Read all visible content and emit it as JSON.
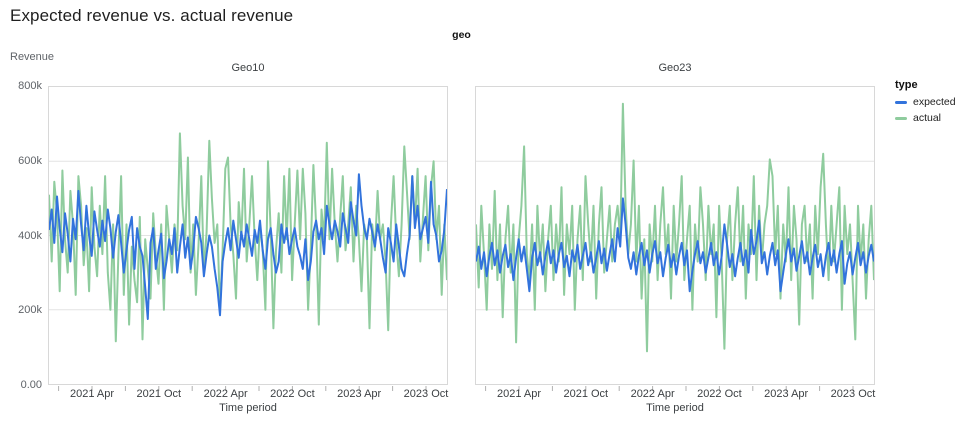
{
  "title": "Expected revenue vs. actual revenue",
  "facet_label": "geo",
  "y_axis": {
    "label": "Revenue",
    "ticks": [
      "800k",
      "600k",
      "400k",
      "200k",
      "0.00"
    ]
  },
  "x_axis": {
    "label": "Time period",
    "ticks": [
      "2021 Apr",
      "2021 Oct",
      "2022 Apr",
      "2022 Oct",
      "2023 Apr",
      "2023 Oct"
    ]
  },
  "legend": {
    "title": "type",
    "items": [
      {
        "label": "expected",
        "color": "#3273dc"
      },
      {
        "label": "actual",
        "color": "#8fcc9e"
      }
    ]
  },
  "colors": {
    "grid": "#e3e3e3",
    "border": "#d8d8d8",
    "tick": "#b0b0b0"
  },
  "chart_data": {
    "type": "line",
    "title": "Expected revenue vs. actual revenue",
    "facet_field": "geo",
    "xlabel": "Time period",
    "ylabel": "Revenue",
    "x_interval": "weekly, Jan 2021 - Dec 2023",
    "x_tick_labels": [
      "2021 Apr",
      "2021 Oct",
      "2022 Apr",
      "2022 Oct",
      "2023 Apr",
      "2023 Oct"
    ],
    "y_unit": "thousands",
    "ylim": [
      0,
      800
    ],
    "y_grid": [
      200,
      400,
      600
    ],
    "legend_position": "right",
    "facets": [
      {
        "name": "Geo10",
        "series": [
          {
            "name": "actual",
            "color": "#8fcc9e",
            "values": [
              510,
              330,
              545,
              460,
              250,
              575,
              390,
              300,
              520,
              430,
              240,
              560,
              480,
              320,
              420,
              250,
              530,
              370,
              290,
              480,
              350,
              560,
              300,
              200,
              430,
              115,
              350,
              560,
              240,
              430,
              160,
              370,
              280,
              220,
              450,
              120,
              390,
              310,
              230,
              460,
              350,
              270,
              430,
              200,
              480,
              390,
              300,
              430,
              360,
              675,
              480,
              390,
              610,
              300,
              430,
              240,
              380,
              560,
              300,
              410,
              655,
              500,
              380,
              430,
              200,
              360,
              580,
              610,
              430,
              350,
              230,
              490,
              390,
              580,
              330,
              430,
              560,
              390,
              280,
              430,
              360,
              200,
              600,
              410,
              150,
              360,
              460,
              300,
              560,
              390,
              580,
              280,
              430,
              575,
              390,
              580,
              460,
              200,
              370,
              590,
              430,
              160,
              470,
              390,
              650,
              390,
              580,
              430,
              330,
              450,
              560,
              360,
              430,
              530,
              330,
              480,
              390,
              250,
              430,
              390,
              150,
              430,
              360,
              520,
              390,
              430,
              330,
              145,
              430,
              560,
              390,
              290,
              430,
              640,
              520,
              390,
              560,
              430,
              580,
              330,
              450,
              560,
              360,
              530,
              600,
              390,
              480,
              240,
              430,
              280
            ]
          },
          {
            "name": "expected",
            "color": "#3273dc",
            "values": [
              415,
              470,
              380,
              505,
              420,
              355,
              460,
              405,
              330,
              445,
              390,
              520,
              430,
              360,
              480,
              400,
              345,
              465,
              415,
              370,
              440,
              385,
              470,
              420,
              340,
              410,
              455,
              380,
              300,
              360,
              415,
              450,
              310,
              420,
              370,
              345,
              260,
              175,
              380,
              420,
              310,
              360,
              405,
              285,
              330,
              390,
              350,
              420,
              300,
              370,
              430,
              340,
              395,
              310,
              360,
              450,
              420,
              380,
              290,
              350,
              400,
              370,
              310,
              260,
              185,
              330,
              380,
              420,
              360,
              440,
              390,
              340,
              410,
              370,
              430,
              390,
              345,
              415,
              380,
              440,
              360,
              310,
              390,
              420,
              350,
              300,
              330,
              430,
              380,
              420,
              350,
              390,
              420,
              370,
              345,
              310,
              390,
              280,
              330,
              410,
              440,
              390,
              420,
              350,
              480,
              430,
              390,
              440,
              410,
              370,
              460,
              420,
              380,
              490,
              440,
              400,
              565,
              480,
              420,
              390,
              445,
              410,
              370,
              430,
              390,
              340,
              300,
              420,
              380,
              330,
              430,
              370,
              310,
              290,
              350,
              400,
              560,
              420,
              480,
              390,
              420,
              450,
              380,
              545,
              430,
              400,
              330,
              360,
              415,
              525
            ]
          }
        ]
      },
      {
        "name": "Geo23",
        "series": [
          {
            "name": "actual",
            "color": "#8fcc9e",
            "values": [
              430,
              260,
              480,
              350,
              200,
              430,
              310,
              520,
              280,
              430,
              180,
              390,
              480,
              300,
              430,
              112,
              390,
              480,
              640,
              350,
              280,
              430,
              200,
              480,
              330,
              430,
              250,
              390,
              480,
              280,
              430,
              330,
              530,
              240,
              430,
              350,
              480,
              200,
              390,
              480,
              280,
              560,
              430,
              330,
              480,
              230,
              430,
              530,
              300,
              390,
              480,
              330,
              430,
              480,
              390,
              755,
              480,
              350,
              430,
              602,
              330,
              480,
              230,
              390,
              88,
              430,
              330,
              480,
              280,
              430,
              530,
              350,
              430,
              230,
              480,
              330,
              430,
              560,
              280,
              390,
              480,
              200,
              430,
              330,
              530,
              430,
              280,
              480,
              350,
              430,
              180,
              480,
              330,
              95,
              390,
              480,
              280,
              430,
              530,
              330,
              480,
              230,
              430,
              350,
              560,
              280,
              480,
              330,
              430,
              480,
              605,
              560,
              350,
              480,
              230,
              430,
              330,
              530,
              280,
              480,
              390,
              160,
              430,
              480,
              330,
              430,
              230,
              480,
              350,
              530,
              620,
              430,
              280,
              480,
              330,
              430,
              530,
              200,
              480,
              350,
              430,
              280,
              120,
              480,
              330,
              430,
              230,
              390,
              480,
              280
            ]
          },
          {
            "name": "expected",
            "color": "#3273dc",
            "values": [
              330,
              370,
              310,
              355,
              290,
              345,
              380,
              320,
              360,
              300,
              345,
              375,
              315,
              350,
              280,
              340,
              390,
              330,
              370,
              310,
              250,
              340,
              380,
              320,
              355,
              295,
              345,
              385,
              325,
              360,
              300,
              350,
              380,
              315,
              345,
              290,
              360,
              330,
              375,
              310,
              345,
              380,
              320,
              355,
              300,
              340,
              385,
              325,
              365,
              305,
              350,
              390,
              330,
              420,
              370,
              500,
              430,
              340,
              310,
              355,
              295,
              345,
              380,
              320,
              360,
              300,
              350,
              385,
              325,
              355,
              290,
              340,
              375,
              315,
              350,
              295,
              345,
              380,
              320,
              360,
              250,
              305,
              350,
              385,
              325,
              355,
              300,
              340,
              380,
              320,
              355,
              295,
              345,
              430,
              375,
              315,
              350,
              290,
              340,
              380,
              320,
              360,
              300,
              415,
              350,
              385,
              440,
              325,
              355,
              295,
              345,
              380,
              320,
              360,
              250,
              300,
              350,
              390,
              330,
              365,
              305,
              345,
              385,
              325,
              355,
              295,
              340,
              375,
              315,
              350,
              290,
              345,
              380,
              320,
              360,
              300,
              350,
              385,
              270,
              325,
              355,
              295,
              340,
              380,
              320,
              355,
              300,
              345,
              375,
              330
            ]
          }
        ]
      }
    ]
  }
}
